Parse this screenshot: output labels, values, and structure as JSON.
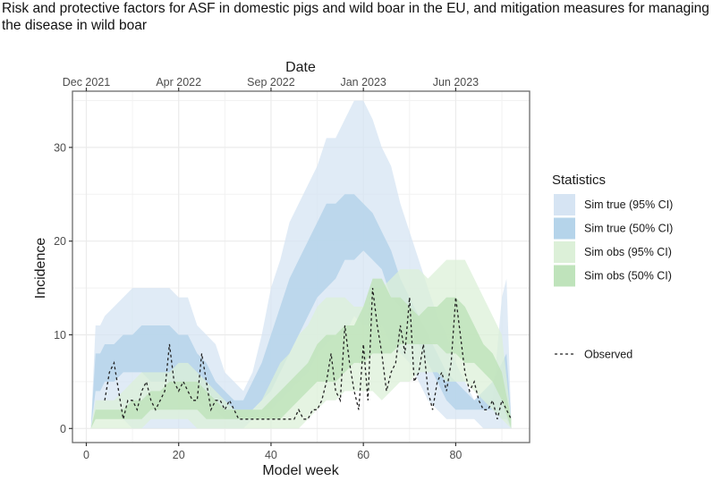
{
  "document": {
    "title": "Risk and protective factors for ASF in domestic pigs and wild boar in the EU, and mitigation measures for managing the disease in wild boar"
  },
  "chart_data": {
    "type": "area",
    "title": "",
    "xlabel": "Model week",
    "ylabel": "Incidence",
    "secondary_xlabel": "Date",
    "xlim": [
      -3,
      96
    ],
    "ylim": [
      -1.5,
      36
    ],
    "x_ticks": [
      0,
      20,
      40,
      60,
      80
    ],
    "x_tick_labels": [
      "0",
      "20",
      "40",
      "60",
      "80"
    ],
    "y_ticks": [
      0,
      10,
      20,
      30
    ],
    "y_tick_labels": [
      "0",
      "10",
      "20",
      "30"
    ],
    "top_axis": {
      "ticks": [
        0,
        20,
        40,
        60,
        80
      ],
      "labels": [
        "Dec 2021",
        "Apr 2022",
        "Sep 2022",
        "Jan 2023",
        "Jun 2023"
      ]
    },
    "grid": true,
    "legend": {
      "title": "Statistics",
      "placement": "right",
      "entries": [
        {
          "label": "Sim true (95% CI)",
          "color": "#d6e4f3"
        },
        {
          "label": "Sim true (50% CI)",
          "color": "#b5d4ea"
        },
        {
          "label": "Sim obs (95% CI)",
          "color": "#dcf0d8"
        },
        {
          "label": "Sim obs (50% CI)",
          "color": "#bfe3bb"
        },
        {
          "label": "Observed",
          "style": "dashed",
          "color": "#222222"
        }
      ]
    },
    "series": [
      {
        "name": "Sim true (95% CI)",
        "kind": "band",
        "color": "#d6e4f3",
        "x": [
          1,
          2,
          3,
          4,
          6,
          8,
          10,
          12,
          14,
          16,
          18,
          20,
          22,
          24,
          26,
          28,
          30,
          32,
          34,
          36,
          38,
          40,
          42,
          44,
          46,
          48,
          50,
          52,
          54,
          56,
          58,
          60,
          62,
          64,
          66,
          68,
          70,
          72,
          74,
          76,
          78,
          80,
          82,
          84,
          86,
          88,
          90,
          91,
          92
        ],
        "lower": [
          0,
          1,
          1,
          1,
          1,
          1,
          0,
          0,
          0,
          0,
          0,
          0,
          0,
          0,
          0,
          0,
          0,
          0,
          0,
          1,
          2,
          2,
          3,
          4,
          5,
          6,
          8,
          9,
          10,
          10,
          12,
          11,
          11,
          11,
          9,
          8,
          7,
          5,
          3,
          2,
          1,
          1,
          1,
          1,
          0,
          0,
          0,
          0,
          0
        ],
        "upper": [
          0,
          11,
          11,
          12,
          13,
          14,
          15,
          15,
          15,
          15,
          15,
          14,
          14,
          11,
          10,
          9,
          6,
          5,
          4,
          6,
          10,
          15,
          18,
          22,
          24,
          26,
          28,
          31,
          31,
          33,
          35,
          35,
          33,
          30,
          28,
          24,
          21,
          18,
          15,
          12,
          10,
          7,
          5,
          3,
          3,
          3,
          14,
          16,
          1
        ]
      },
      {
        "name": "Sim true (50% CI)",
        "kind": "band",
        "color": "#b5d4ea",
        "x": [
          1,
          2,
          3,
          4,
          6,
          8,
          10,
          12,
          14,
          16,
          18,
          20,
          22,
          24,
          26,
          28,
          30,
          32,
          34,
          36,
          38,
          40,
          42,
          44,
          46,
          48,
          50,
          52,
          54,
          56,
          58,
          60,
          62,
          64,
          66,
          68,
          70,
          72,
          74,
          76,
          78,
          80,
          82,
          84,
          86,
          88,
          90,
          91,
          92
        ],
        "lower": [
          0,
          4,
          4,
          5,
          5,
          6,
          6,
          6,
          5,
          5,
          5,
          4,
          4,
          3,
          2,
          2,
          1,
          1,
          1,
          2,
          3,
          4,
          6,
          8,
          10,
          12,
          14,
          15,
          16,
          18,
          18,
          19,
          18,
          17,
          14,
          13,
          11,
          9,
          7,
          5,
          3,
          2,
          2,
          2,
          2,
          2,
          1,
          1,
          0
        ],
        "upper": [
          0,
          8,
          8,
          9,
          9,
          10,
          10,
          11,
          11,
          11,
          11,
          10,
          10,
          8,
          7,
          5,
          4,
          3,
          3,
          5,
          7,
          10,
          13,
          16,
          18,
          20,
          22,
          24,
          24,
          25,
          25,
          24,
          23,
          21,
          19,
          16,
          14,
          12,
          10,
          8,
          6,
          5,
          4,
          3,
          4,
          5,
          7,
          8,
          1
        ]
      },
      {
        "name": "Sim obs (95% CI)",
        "kind": "band",
        "color": "#dcf0d8",
        "x": [
          1,
          2,
          4,
          6,
          8,
          10,
          12,
          14,
          16,
          18,
          20,
          22,
          24,
          26,
          28,
          30,
          32,
          34,
          36,
          38,
          40,
          42,
          44,
          46,
          48,
          50,
          52,
          54,
          56,
          58,
          60,
          62,
          64,
          66,
          68,
          70,
          72,
          74,
          76,
          78,
          80,
          82,
          84,
          86,
          88,
          90,
          92
        ],
        "lower": [
          0,
          0,
          0,
          0,
          0,
          0,
          0,
          1,
          1,
          1,
          1,
          1,
          0,
          0,
          0,
          0,
          0,
          0,
          0,
          0,
          0,
          0,
          0,
          0,
          1,
          2,
          3,
          3,
          4,
          4,
          4,
          4,
          3,
          4,
          5,
          5,
          6,
          6,
          6,
          5,
          5,
          5,
          4,
          3,
          2,
          1,
          0
        ],
        "upper": [
          0,
          3,
          3,
          3,
          4,
          5,
          6,
          6,
          6,
          6,
          7,
          7,
          6,
          5,
          4,
          3,
          2,
          2,
          2,
          3,
          5,
          7,
          8,
          10,
          11,
          13,
          14,
          14,
          14,
          13,
          13,
          15,
          15,
          16,
          17,
          17,
          17,
          16,
          17,
          18,
          18,
          18,
          16,
          14,
          12,
          10,
          1
        ]
      },
      {
        "name": "Sim obs (50% CI)",
        "kind": "band",
        "color": "#bfe3bb",
        "x": [
          1,
          2,
          4,
          6,
          8,
          10,
          12,
          14,
          16,
          18,
          20,
          22,
          24,
          26,
          28,
          30,
          32,
          34,
          36,
          38,
          40,
          42,
          44,
          46,
          48,
          50,
          52,
          54,
          56,
          58,
          60,
          62,
          64,
          66,
          68,
          70,
          72,
          74,
          76,
          78,
          80,
          82,
          84,
          86,
          88,
          90,
          92
        ],
        "lower": [
          0,
          1,
          1,
          1,
          1,
          1,
          1,
          2,
          2,
          2,
          2,
          2,
          2,
          1,
          1,
          1,
          1,
          1,
          1,
          1,
          1,
          1,
          2,
          3,
          4,
          5,
          5,
          5,
          6,
          7,
          7,
          8,
          8,
          8,
          9,
          9,
          9,
          9,
          9,
          8,
          8,
          7,
          7,
          6,
          5,
          3,
          0
        ],
        "upper": [
          0,
          2,
          2,
          2,
          2,
          3,
          3,
          4,
          4,
          5,
          5,
          5,
          5,
          4,
          3,
          2,
          2,
          2,
          2,
          2,
          3,
          4,
          5,
          6,
          7,
          9,
          10,
          10,
          11,
          11,
          13,
          16,
          16,
          14,
          14,
          13,
          12,
          13,
          13,
          14,
          14,
          13,
          11,
          9,
          8,
          6,
          1
        ]
      },
      {
        "name": "Observed",
        "kind": "line",
        "style": "dashed",
        "color": "#222222",
        "x": [
          4,
          5,
          6,
          7,
          8,
          9,
          10,
          11,
          12,
          13,
          14,
          15,
          16,
          17,
          18,
          19,
          20,
          21,
          22,
          23,
          24,
          25,
          26,
          27,
          28,
          29,
          30,
          31,
          32,
          33,
          34,
          35,
          36,
          37,
          38,
          39,
          40,
          41,
          42,
          43,
          44,
          45,
          46,
          47,
          48,
          49,
          50,
          51,
          52,
          53,
          54,
          55,
          56,
          57,
          58,
          59,
          60,
          61,
          62,
          63,
          64,
          65,
          66,
          67,
          68,
          69,
          70,
          71,
          72,
          73,
          74,
          75,
          76,
          77,
          78,
          79,
          80,
          81,
          82,
          83,
          84,
          85,
          86,
          87,
          88,
          89,
          90,
          91,
          92
        ],
        "y": [
          3,
          6,
          7,
          4,
          1,
          3,
          3,
          2,
          4,
          5,
          3,
          2,
          3,
          4,
          9,
          5,
          4,
          5,
          4,
          3,
          3,
          8,
          5,
          2,
          3,
          3,
          2,
          3,
          2,
          1,
          1,
          1,
          1,
          1,
          1,
          1,
          1,
          1,
          1,
          1,
          1,
          1,
          2,
          1,
          1,
          2,
          2,
          3,
          5,
          8,
          4,
          3,
          11,
          7,
          4,
          2,
          9,
          3,
          15,
          11,
          8,
          4,
          6,
          7,
          11,
          8,
          14,
          5,
          6,
          9,
          4,
          2,
          5,
          6,
          4,
          7,
          14,
          10,
          6,
          4,
          5,
          3,
          2,
          2,
          3,
          1,
          3,
          2,
          1
        ]
      }
    ]
  }
}
